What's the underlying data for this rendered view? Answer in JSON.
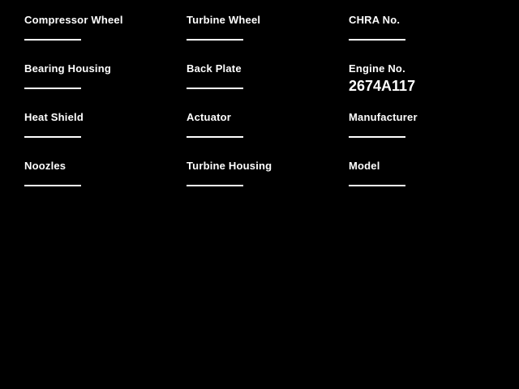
{
  "page": {
    "background_color": "#000000",
    "text_color": "#ffffff"
  },
  "fields": [
    {
      "label": "Compressor Wheel",
      "value": ""
    },
    {
      "label": "Turbine Wheel",
      "value": ""
    },
    {
      "label": "CHRA No.",
      "value": ""
    },
    {
      "label": "Bearing Housing",
      "value": ""
    },
    {
      "label": "Back Plate",
      "value": ""
    },
    {
      "label": "Engine No.",
      "value": "2674A117"
    },
    {
      "label": "Heat Shield",
      "value": ""
    },
    {
      "label": "Actuator",
      "value": ""
    },
    {
      "label": "Manufacturer",
      "value": ""
    },
    {
      "label": "Noozles",
      "value": ""
    },
    {
      "label": "Turbine Housing",
      "value": ""
    },
    {
      "label": "Model",
      "value": ""
    }
  ]
}
